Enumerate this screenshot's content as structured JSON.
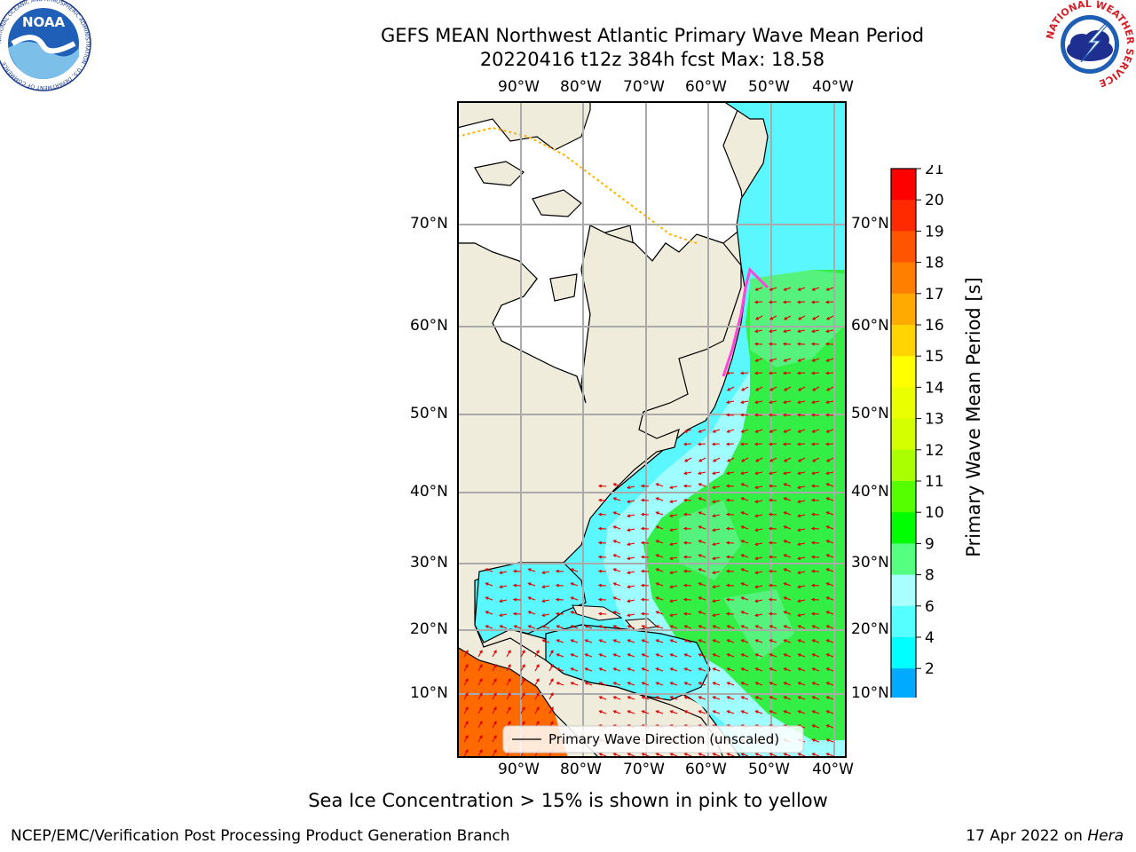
{
  "title": {
    "line1": "GEFS MEAN Northwest Atlantic Primary Wave Mean Period",
    "line2": "20220416 t12z 384h fcst   Max: 18.58"
  },
  "map": {
    "lon_labels": [
      "90°W",
      "80°W",
      "70°W",
      "60°W",
      "50°W",
      "40°W"
    ],
    "lat_labels": [
      "70°N",
      "60°N",
      "50°N",
      "40°N",
      "30°N",
      "20°N",
      "10°N"
    ],
    "legend_label": "Primary Wave Direction (unscaled)",
    "land_color": "#efecdc",
    "arrow_color": "#e00000"
  },
  "colorbar": {
    "label": "Primary Wave Mean Period [s]",
    "ticks": [
      "21",
      "20",
      "19",
      "18",
      "17",
      "16",
      "15",
      "14",
      "13",
      "12",
      "11",
      "10",
      "9",
      "8",
      "6",
      "4",
      "2"
    ],
    "colors": [
      "#ff0000",
      "#ff2a00",
      "#ff5500",
      "#ff7f00",
      "#ffaa00",
      "#ffd400",
      "#ffff00",
      "#eaff00",
      "#d4ff00",
      "#aaff00",
      "#55ff00",
      "#00ff00",
      "#55ff80",
      "#aaffff",
      "#55ffff",
      "#00ffff",
      "#00aaff",
      "#0000ff"
    ]
  },
  "note": "Sea Ice Concentration > 15% is shown in pink to yellow",
  "footer": {
    "left": "NCEP/EMC/Verification Post Processing Product Generation Branch",
    "date": "17 Apr 2022 on",
    "host": "Hera"
  },
  "logos": {
    "noaa_text": "NOAA",
    "noaa_ring": "NATIONAL OCEANIC AND ATMOSPHERIC ADMINISTRATION · U.S. DEPARTMENT OF COMMERCE",
    "nws_ring": "NATIONAL WEATHER SERVICE"
  }
}
